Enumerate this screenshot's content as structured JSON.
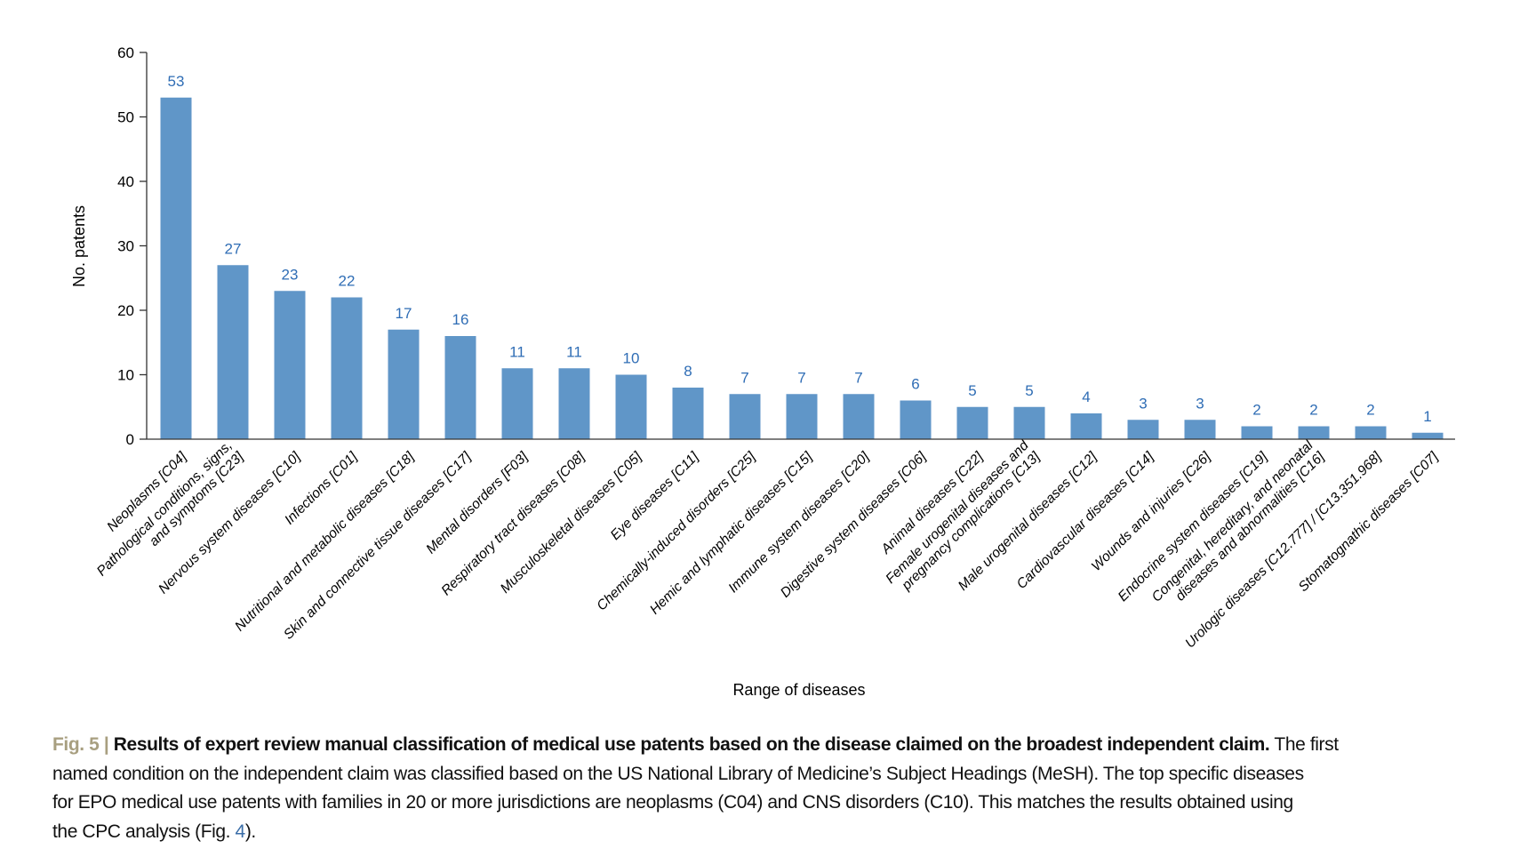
{
  "chart_data": {
    "type": "bar",
    "xlabel": "Range of diseases",
    "ylabel": "No. patents",
    "ylim": [
      0,
      60
    ],
    "yticks": [
      0,
      10,
      20,
      30,
      40,
      50,
      60
    ],
    "grid": false,
    "bar_color": "#6096c8",
    "label_color": "#2f6db5",
    "categories": [
      [
        "Neoplasms [C04]"
      ],
      [
        "Pathological conditions, signs,",
        "and symptoms [C23]"
      ],
      [
        "Nervous system diseases [C10]"
      ],
      [
        "Infections [C01]"
      ],
      [
        "Nutritional and metabolic diseases [C18]"
      ],
      [
        "Skin and connective tissue diseases [C17]"
      ],
      [
        "Mental disorders [F03]"
      ],
      [
        "Respiratory tract diseases [C08]"
      ],
      [
        "Musculoskeletal diseases [C05]"
      ],
      [
        "Eye diseases [C11]"
      ],
      [
        "Chemically-induced disorders [C25]"
      ],
      [
        "Hemic and lymphatic diseases [C15]"
      ],
      [
        "Immune system diseases [C20]"
      ],
      [
        "Digestive system diseases [C06]"
      ],
      [
        "Animal diseases [C22]"
      ],
      [
        "Female urogenital diseases and",
        "pregnancy complications [C13]"
      ],
      [
        "Male urogenital diseases [C12]"
      ],
      [
        "Cardiovascular diseases [C14]"
      ],
      [
        "Wounds and injuries [C26]"
      ],
      [
        "Endocrine system diseases [C19]"
      ],
      [
        "Congenital, hereditary, and neonatal",
        "diseases and abnormalities [C16]"
      ],
      [
        "Urologic diseases [C12.777] / [C13.351.968]"
      ],
      [
        "Stomatognathic diseases [C07]"
      ]
    ],
    "values": [
      53,
      27,
      23,
      22,
      17,
      16,
      11,
      11,
      10,
      8,
      7,
      7,
      7,
      6,
      5,
      5,
      4,
      3,
      3,
      2,
      2,
      2,
      1
    ]
  },
  "caption": {
    "fig_label": "Fig. 5 |",
    "title": "Results of expert review manual classification of medical use patents based on the disease claimed on the broadest independent claim.",
    "line1_rest": " The first",
    "line2": "named condition on the independent claim was classified based on the US National Library of Medicine’s Subject Headings (MeSH). The top specific diseases",
    "line3": "for EPO medical use patents with families in 20 or more jurisdictions are neoplasms (C04) and CNS disorders (C10). This matches the results obtained using",
    "line4_pre": "the CPC analysis (Fig. ",
    "line4_ref": "4",
    "line4_post": ")."
  }
}
